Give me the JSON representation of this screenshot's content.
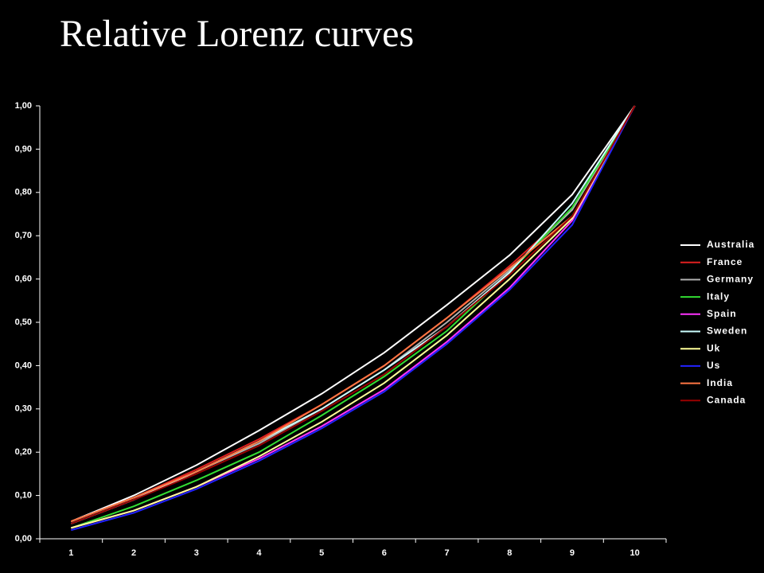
{
  "chart_data": {
    "type": "line",
    "title": "Relative Lorenz curves",
    "categories": [
      "1",
      "2",
      "3",
      "4",
      "5",
      "6",
      "7",
      "8",
      "9",
      "10"
    ],
    "ylim": [
      0,
      1
    ],
    "yticks": [
      {
        "value": 0,
        "label": "0,00"
      },
      {
        "value": 0.1,
        "label": "0,10"
      },
      {
        "value": 0.2,
        "label": "0,20"
      },
      {
        "value": 0.3,
        "label": "0,30"
      },
      {
        "value": 0.4,
        "label": "0,40"
      },
      {
        "value": 0.5,
        "label": "0,50"
      },
      {
        "value": 0.6,
        "label": "0,60"
      },
      {
        "value": 0.7,
        "label": "0,70"
      },
      {
        "value": 0.8,
        "label": "0,80"
      },
      {
        "value": 0.9,
        "label": "0,90"
      },
      {
        "value": 1,
        "label": "1,00"
      }
    ],
    "legend": "right",
    "series": [
      {
        "name": "Australia",
        "color": "#ffffff",
        "values": [
          0.04,
          0.1,
          0.17,
          0.25,
          0.335,
          0.43,
          0.54,
          0.655,
          0.795,
          1.0
        ]
      },
      {
        "name": "France",
        "color": "#e02020",
        "values": [
          0.04,
          0.095,
          0.16,
          0.23,
          0.31,
          0.4,
          0.51,
          0.63,
          0.76,
          1.0
        ]
      },
      {
        "name": "Germany",
        "color": "#b0b0b0",
        "values": [
          0.035,
          0.09,
          0.155,
          0.22,
          0.3,
          0.39,
          0.5,
          0.62,
          0.76,
          1.0
        ]
      },
      {
        "name": "Italy",
        "color": "#33dd33",
        "values": [
          0.025,
          0.075,
          0.135,
          0.2,
          0.285,
          0.375,
          0.48,
          0.615,
          0.765,
          1.0
        ]
      },
      {
        "name": "Spain",
        "color": "#ff33ff",
        "values": [
          0.025,
          0.065,
          0.12,
          0.185,
          0.26,
          0.345,
          0.455,
          0.58,
          0.735,
          1.0
        ]
      },
      {
        "name": "Sweden",
        "color": "#ccffff",
        "values": [
          0.035,
          0.09,
          0.155,
          0.225,
          0.3,
          0.39,
          0.49,
          0.615,
          0.775,
          1.0
        ]
      },
      {
        "name": "Uk",
        "color": "#ffff99",
        "values": [
          0.025,
          0.065,
          0.12,
          0.19,
          0.27,
          0.36,
          0.47,
          0.6,
          0.74,
          1.0
        ]
      },
      {
        "name": "Us",
        "color": "#2222ff",
        "values": [
          0.02,
          0.06,
          0.115,
          0.18,
          0.255,
          0.34,
          0.45,
          0.575,
          0.725,
          1.0
        ]
      },
      {
        "name": "India",
        "color": "#ff7744",
        "values": [
          0.04,
          0.095,
          0.155,
          0.225,
          0.31,
          0.4,
          0.51,
          0.625,
          0.745,
          1.0
        ]
      },
      {
        "name": "Canada",
        "color": "#990000",
        "values": [
          0.035,
          0.09,
          0.15,
          0.215,
          0.295,
          0.38,
          0.49,
          0.61,
          0.745,
          1.0
        ]
      }
    ]
  }
}
